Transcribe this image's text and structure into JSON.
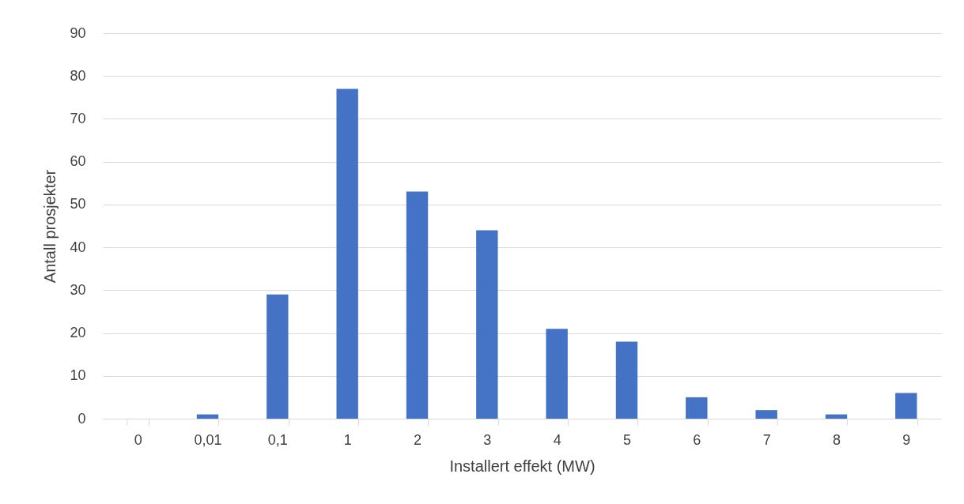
{
  "chart_data": {
    "type": "bar",
    "xlabel": "Installert effekt (MW)",
    "ylabel": "Antall prosjekter",
    "categories": [
      "0",
      "0,01",
      "0,1",
      "1",
      "2",
      "3",
      "4",
      "5",
      "6",
      "7",
      "8",
      "9"
    ],
    "values": [
      0,
      1,
      29,
      77,
      53,
      44,
      21,
      18,
      5,
      2,
      1,
      6
    ],
    "color": "#4472c4",
    "ylim": [
      0,
      90
    ],
    "yticks": [
      0,
      10,
      20,
      30,
      40,
      50,
      60,
      70,
      80,
      90
    ],
    "grid": "y"
  }
}
